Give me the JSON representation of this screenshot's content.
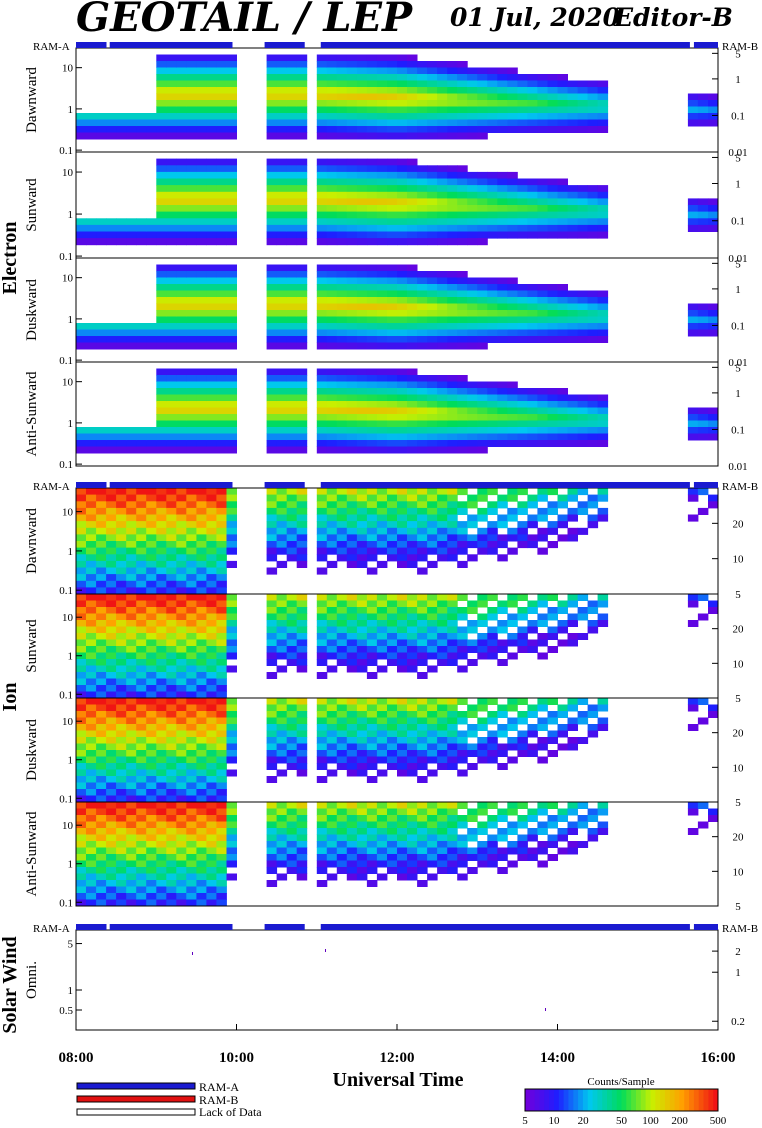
{
  "header": {
    "title": "GEOTAIL / LEP",
    "date": "01 Jul, 2020",
    "editor": "Editor-B"
  },
  "mode_labels": {
    "left": "RAM-A",
    "right": "RAM-B"
  },
  "groups": {
    "electron": "Electron",
    "ion": "Ion",
    "solar_wind": "Solar Wind"
  },
  "x_axis": {
    "label": "Universal Time",
    "tick_labels": [
      "08:00",
      "10:00",
      "12:00",
      "14:00",
      "16:00"
    ],
    "range_hours": [
      8,
      16
    ]
  },
  "legend": {
    "items": [
      {
        "label": "RAM-A",
        "color": "#1a1ad0"
      },
      {
        "label": "RAM-B",
        "color": "#e01010"
      },
      {
        "label": "Lack of Data",
        "color": "#ffffff"
      }
    ]
  },
  "colorbar": {
    "title": "Counts/Sample",
    "tick_labels": [
      "5",
      "10",
      "20",
      "50",
      "100",
      "200",
      "500"
    ],
    "range": [
      5,
      500
    ],
    "scale": "log"
  },
  "chart_data": {
    "type": "heatmap",
    "x_unit": "UT hours",
    "x_range": [
      8,
      16
    ],
    "color_scale": "log counts/sample, 5 to 500, rainbow (violet to red)",
    "mode_bar": {
      "ram_a_intervals": [
        [
          8.0,
          8.38
        ],
        [
          8.42,
          9.95
        ],
        [
          10.35,
          10.85
        ],
        [
          11.05,
          15.65
        ],
        [
          15.7,
          16.0
        ]
      ],
      "lack_of_data": [
        [
          8.38,
          8.42
        ],
        [
          9.95,
          10.35
        ],
        [
          10.85,
          11.05
        ],
        [
          15.65,
          15.7
        ]
      ]
    },
    "data_gaps_hours": [
      [
        9.95,
        10.35
      ],
      [
        10.85,
        11.05
      ],
      [
        14.6,
        15.6
      ]
    ],
    "panels": [
      {
        "group": "Electron",
        "name": "Dawnward",
        "left_ticks": [
          "10",
          "1",
          "0.1"
        ],
        "left_scale": "log",
        "left_range": [
          0.09,
          30
        ],
        "right_ticks": [
          "5",
          "1",
          "0.1",
          "0.01"
        ],
        "right_range": [
          0.01,
          7
        ]
      },
      {
        "group": "Electron",
        "name": "Sunward",
        "left_ticks": [
          "10",
          "1",
          "0.1"
        ],
        "left_scale": "log",
        "left_range": [
          0.09,
          30
        ],
        "right_ticks": [
          "5",
          "1",
          "0.1",
          "0.01"
        ],
        "right_range": [
          0.01,
          7
        ]
      },
      {
        "group": "Electron",
        "name": "Duskward",
        "left_ticks": [
          "10",
          "1",
          "0.1"
        ],
        "left_scale": "log",
        "left_range": [
          0.09,
          30
        ],
        "right_ticks": [
          "5",
          "1",
          "0.1",
          "0.01"
        ],
        "right_range": [
          0.01,
          7
        ]
      },
      {
        "group": "Electron",
        "name": "Anti-Sunward",
        "left_ticks": [
          "10",
          "1",
          "0.1"
        ],
        "left_scale": "log",
        "left_range": [
          0.09,
          30
        ],
        "right_ticks": [
          "5",
          "1",
          "0.1",
          "0.01"
        ],
        "right_range": [
          0.01,
          7
        ]
      },
      {
        "group": "Ion",
        "name": "Dawnward",
        "left_ticks": [
          "10",
          "1",
          "0.1"
        ],
        "left_scale": "log",
        "left_range": [
          0.08,
          40
        ],
        "right_ticks": [
          "20",
          "10",
          "5"
        ],
        "right_range": [
          5,
          40
        ]
      },
      {
        "group": "Ion",
        "name": "Sunward",
        "left_ticks": [
          "10",
          "1",
          "0.1"
        ],
        "left_scale": "log",
        "left_range": [
          0.08,
          40
        ],
        "right_ticks": [
          "20",
          "10",
          "5"
        ],
        "right_range": [
          5,
          40
        ]
      },
      {
        "group": "Ion",
        "name": "Duskward",
        "left_ticks": [
          "10",
          "1",
          "0.1"
        ],
        "left_scale": "log",
        "left_range": [
          0.08,
          40
        ],
        "right_ticks": [
          "20",
          "10",
          "5"
        ],
        "right_range": [
          5,
          40
        ]
      },
      {
        "group": "Ion",
        "name": "Anti-Sunward",
        "left_ticks": [
          "10",
          "1",
          "0.1"
        ],
        "left_scale": "log",
        "left_range": [
          0.08,
          40
        ],
        "right_ticks": [
          "20",
          "10",
          "5"
        ],
        "right_range": [
          5,
          40
        ]
      },
      {
        "group": "Solar Wind",
        "name": "Omni.",
        "left_ticks": [
          "5",
          "1",
          "0.5"
        ],
        "left_scale": "log",
        "left_range": [
          0.25,
          8
        ],
        "right_ticks": [
          "2",
          "1",
          "0.2"
        ],
        "right_range": [
          0.15,
          4
        ]
      }
    ]
  }
}
